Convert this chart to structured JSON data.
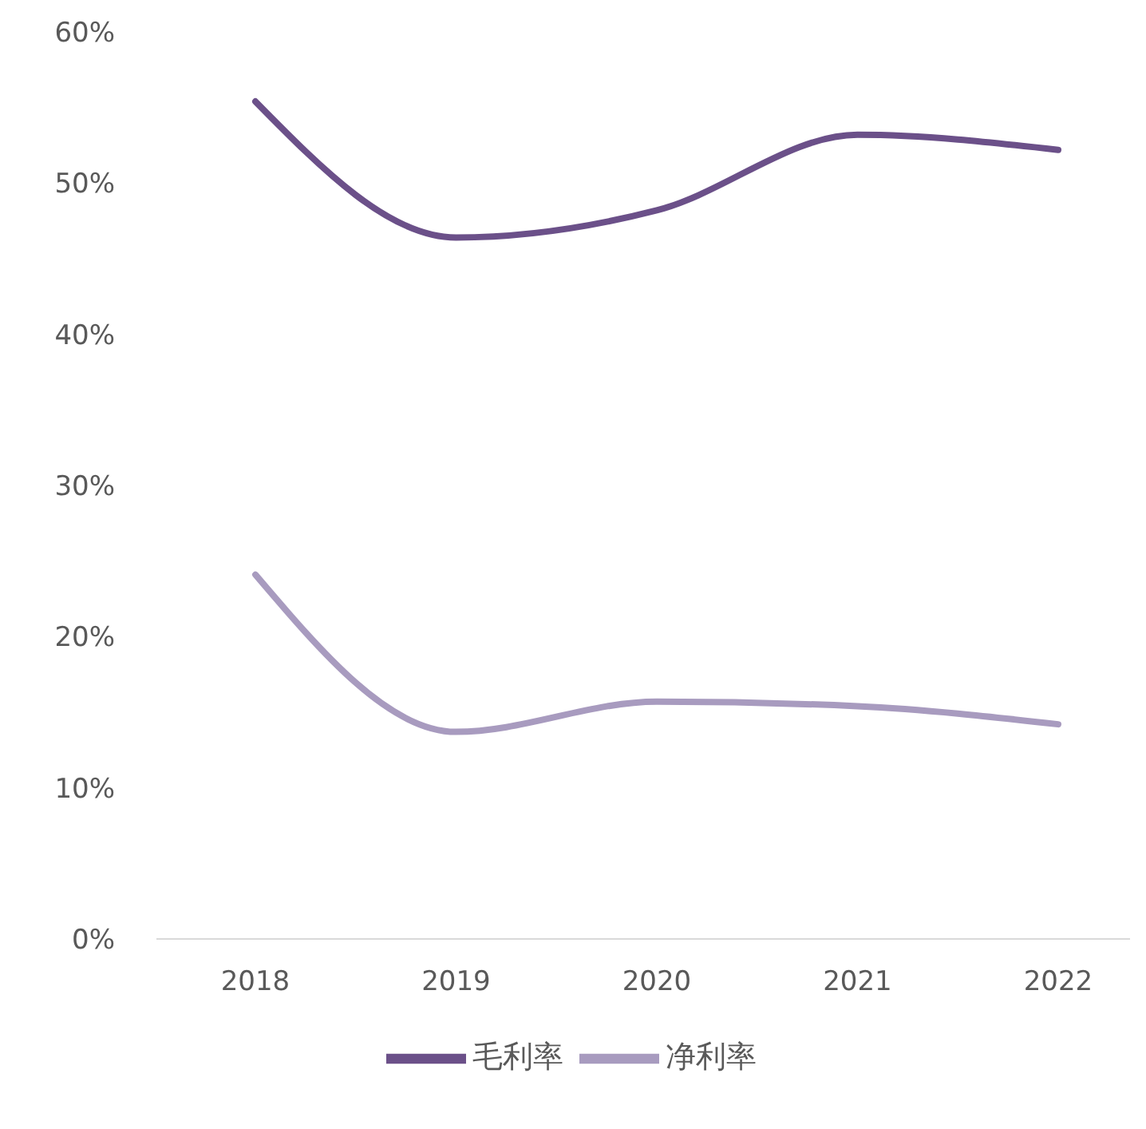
{
  "chart_data": {
    "type": "line",
    "categories": [
      "2018",
      "2019",
      "2020",
      "2021",
      "2022"
    ],
    "series": [
      {
        "name": "毛利率",
        "color": "#6b5089",
        "values": [
          55.4,
          46.4,
          48.2,
          53.2,
          52.2
        ]
      },
      {
        "name": "净利率",
        "color": "#a89bbf",
        "values": [
          24.1,
          13.7,
          15.7,
          15.4,
          14.2
        ]
      }
    ],
    "ylim": [
      0,
      60
    ],
    "yticks": [
      {
        "value": 0,
        "label": "0%"
      },
      {
        "value": 10,
        "label": "10%"
      },
      {
        "value": 20,
        "label": "20%"
      },
      {
        "value": 30,
        "label": "30%"
      },
      {
        "value": 40,
        "label": "40%"
      },
      {
        "value": 50,
        "label": "50%"
      },
      {
        "value": 60,
        "label": "60%"
      }
    ],
    "grid": false,
    "legend": "bottom",
    "marker": "none",
    "line_style": "solid"
  }
}
